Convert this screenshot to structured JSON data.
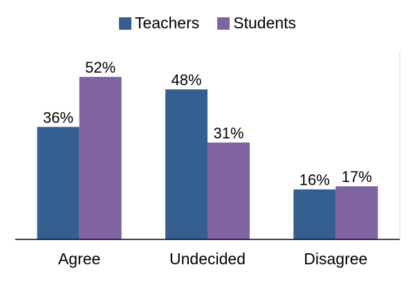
{
  "chart_data": {
    "type": "bar",
    "categories": [
      "Agree",
      "Undecided",
      "Disagree"
    ],
    "series": [
      {
        "name": "Teachers",
        "values": [
          36,
          48,
          16
        ],
        "labels": [
          "36%",
          "48%",
          "16%"
        ],
        "color": "#365f91"
      },
      {
        "name": "Students",
        "values": [
          52,
          31,
          17
        ],
        "labels": [
          "52%",
          "31%",
          "17%"
        ],
        "color": "#8064a2"
      }
    ],
    "ylim": [
      0,
      60
    ],
    "value_suffix": "%",
    "grid": false,
    "legend_position": "top-center"
  }
}
